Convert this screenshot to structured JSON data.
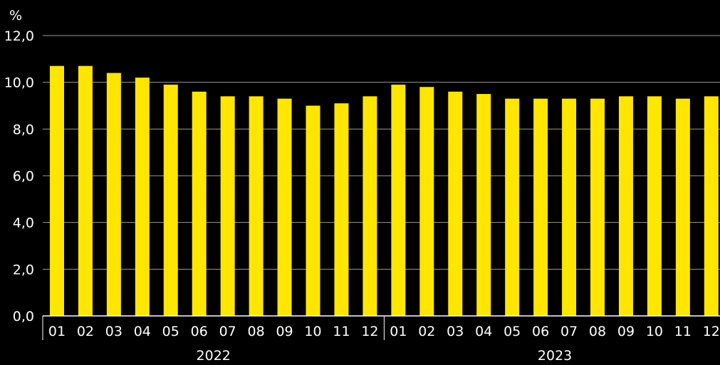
{
  "chart_data": {
    "type": "bar",
    "title": "",
    "ylabel": "%",
    "xlabel": "",
    "ylim": [
      0,
      12
    ],
    "y_ticks": [
      "0,0",
      "2,0",
      "4,0",
      "6,0",
      "8,0",
      "10,0",
      "12,0"
    ],
    "grid": true,
    "bar_color": "#ffe600",
    "background": "#000000",
    "categories": [
      "01",
      "02",
      "03",
      "04",
      "05",
      "06",
      "07",
      "08",
      "09",
      "10",
      "11",
      "12",
      "01",
      "02",
      "03",
      "04",
      "05",
      "06",
      "07",
      "08",
      "09",
      "10",
      "11",
      "12"
    ],
    "groups": [
      {
        "label": "2022",
        "count": 12
      },
      {
        "label": "2023",
        "count": 12
      }
    ],
    "values": [
      10.7,
      10.7,
      10.4,
      10.2,
      9.9,
      9.6,
      9.4,
      9.4,
      9.3,
      9.0,
      9.1,
      9.4,
      9.9,
      9.8,
      9.6,
      9.5,
      9.3,
      9.3,
      9.3,
      9.3,
      9.4,
      9.4,
      9.3,
      9.4
    ]
  }
}
